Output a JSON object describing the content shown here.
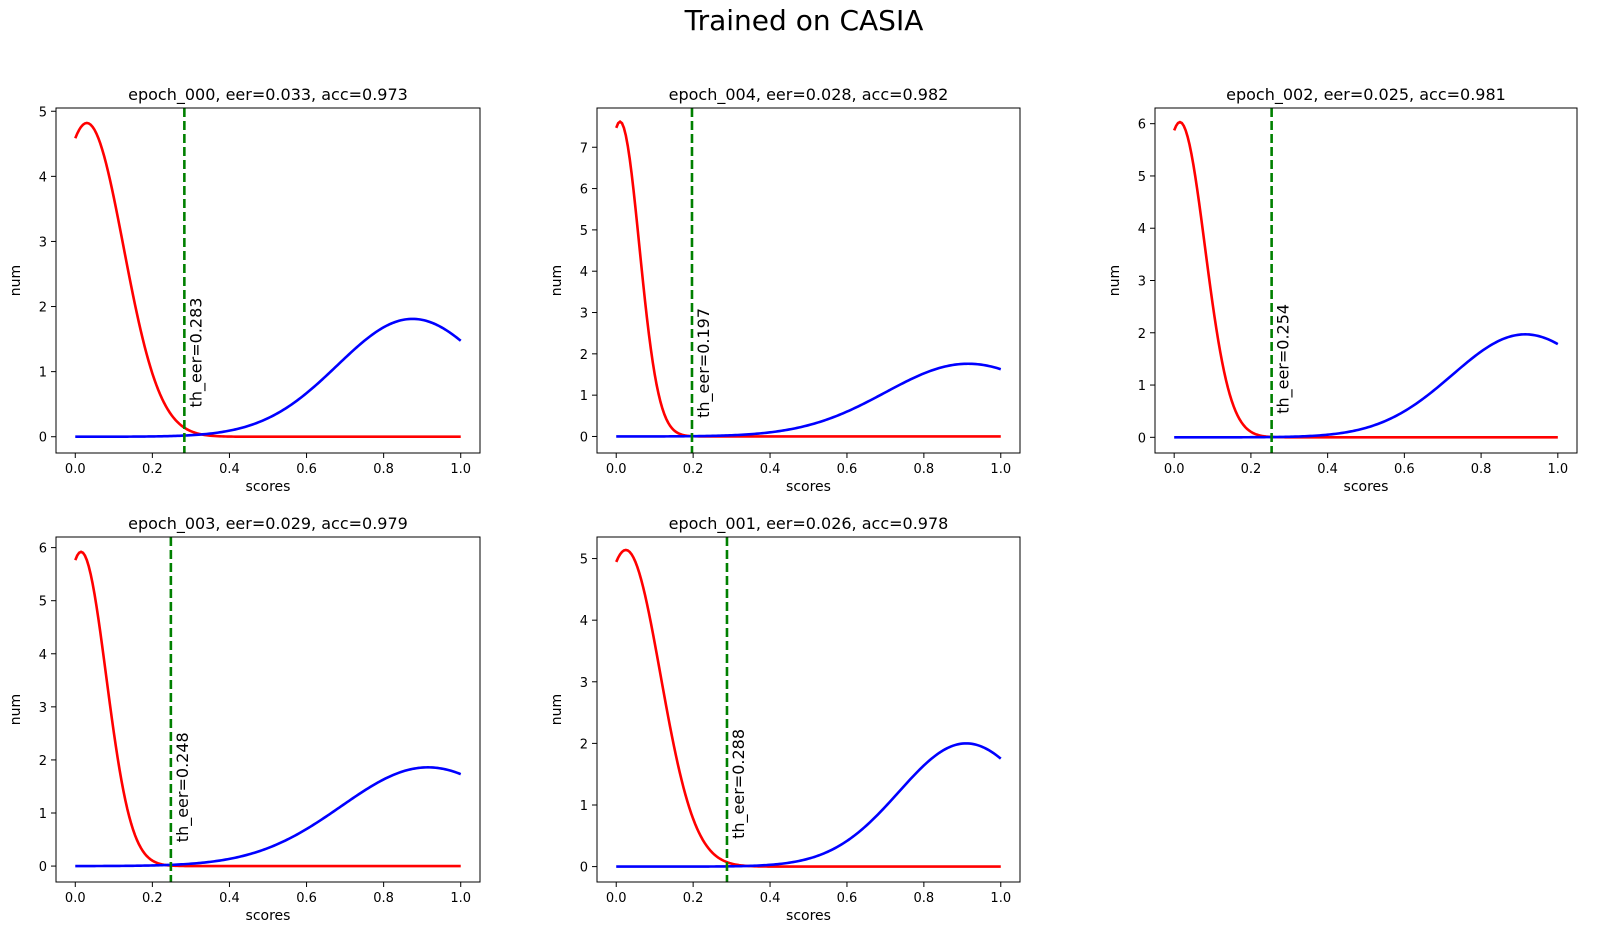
{
  "suptitle": "Trained on CASIA",
  "colors": {
    "impostor": "#ff0000",
    "genuine": "#0000ff",
    "threshold": "#008000"
  },
  "chart_data": [
    {
      "type": "line",
      "title": "epoch_000, eer=0.033, acc=0.973",
      "xlabel": "scores",
      "ylabel": "num",
      "xlim": [
        -0.05,
        1.05
      ],
      "ylim": [
        -0.25,
        5.05
      ],
      "xticks": [
        "0.0",
        "0.2",
        "0.4",
        "0.6",
        "0.8",
        "1.0"
      ],
      "yticks": [
        "0",
        "1",
        "2",
        "3",
        "4",
        "5"
      ],
      "threshold": 0.283,
      "threshold_label": "th_eer=0.283",
      "red": {
        "a": 4.82,
        "mu": 0.03,
        "sigma": 0.095
      },
      "blue": {
        "a": 1.81,
        "mu": 0.875,
        "sigma": 0.195
      }
    },
    {
      "type": "line",
      "title": "epoch_004, eer=0.028, acc=0.982",
      "xlabel": "scores",
      "ylabel": "num",
      "xlim": [
        -0.05,
        1.05
      ],
      "ylim": [
        -0.4,
        7.95
      ],
      "xticks": [
        "0.0",
        "0.2",
        "0.4",
        "0.6",
        "0.8",
        "1.0"
      ],
      "yticks": [
        "0",
        "1",
        "2",
        "3",
        "4",
        "5",
        "6",
        "7"
      ],
      "threshold": 0.197,
      "threshold_label": "th_eer=0.197",
      "red": {
        "a": 7.62,
        "mu": 0.01,
        "sigma": 0.05
      },
      "blue": {
        "a": 1.76,
        "mu": 0.915,
        "sigma": 0.215
      }
    },
    {
      "type": "line",
      "title": "epoch_002, eer=0.025, acc=0.981",
      "xlabel": "scores",
      "ylabel": "num",
      "xlim": [
        -0.05,
        1.05
      ],
      "ylim": [
        -0.3,
        6.3
      ],
      "xticks": [
        "0.0",
        "0.2",
        "0.4",
        "0.6",
        "0.8",
        "1.0"
      ],
      "yticks": [
        "0",
        "1",
        "2",
        "3",
        "4",
        "5",
        "6"
      ],
      "threshold": 0.254,
      "threshold_label": "th_eer=0.254",
      "red": {
        "a": 6.03,
        "mu": 0.015,
        "sigma": 0.065
      },
      "blue": {
        "a": 1.97,
        "mu": 0.915,
        "sigma": 0.19
      }
    },
    {
      "type": "line",
      "title": "epoch_003, eer=0.029, acc=0.979",
      "xlabel": "scores",
      "ylabel": "num",
      "xlim": [
        -0.05,
        1.05
      ],
      "ylim": [
        -0.3,
        6.2
      ],
      "xticks": [
        "0.0",
        "0.2",
        "0.4",
        "0.6",
        "0.8",
        "1.0"
      ],
      "yticks": [
        "0",
        "1",
        "2",
        "3",
        "4",
        "5",
        "6"
      ],
      "threshold": 0.248,
      "threshold_label": "th_eer=0.248",
      "red": {
        "a": 5.92,
        "mu": 0.015,
        "sigma": 0.065
      },
      "blue": {
        "a": 1.86,
        "mu": 0.915,
        "sigma": 0.225
      }
    },
    {
      "type": "line",
      "title": "epoch_001, eer=0.026, acc=0.978",
      "xlabel": "scores",
      "ylabel": "num",
      "xlim": [
        -0.05,
        1.05
      ],
      "ylim": [
        -0.25,
        5.35
      ],
      "xticks": [
        "0.0",
        "0.2",
        "0.4",
        "0.6",
        "0.8",
        "1.0"
      ],
      "yticks": [
        "0",
        "1",
        "2",
        "3",
        "4",
        "5"
      ],
      "threshold": 0.288,
      "threshold_label": "th_eer=0.288",
      "red": {
        "a": 5.14,
        "mu": 0.025,
        "sigma": 0.09
      },
      "blue": {
        "a": 2.0,
        "mu": 0.91,
        "sigma": 0.175
      }
    }
  ]
}
